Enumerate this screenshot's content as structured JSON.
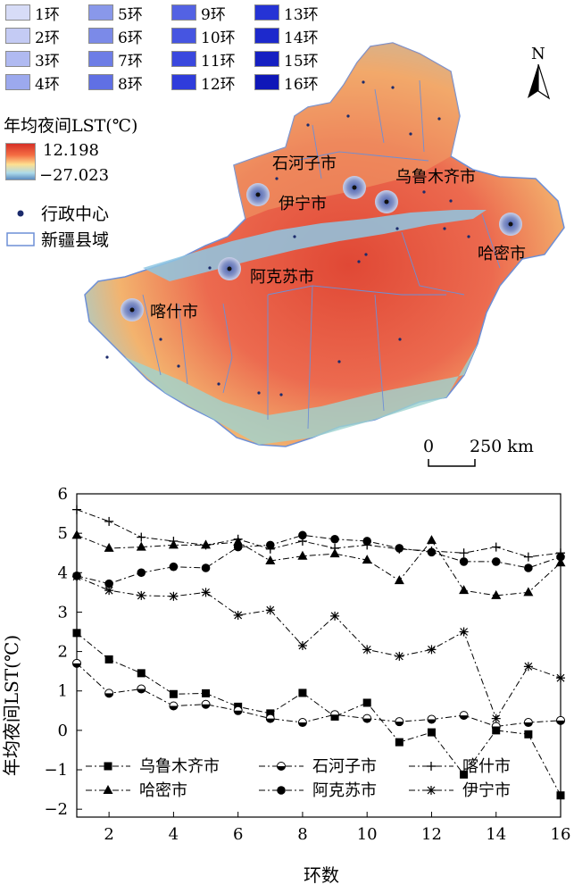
{
  "map": {
    "ring_legend": [
      "1环",
      "2环",
      "3环",
      "4环",
      "5环",
      "6环",
      "7环",
      "8环",
      "9环",
      "10环",
      "11环",
      "12环",
      "13环",
      "14环",
      "15环",
      "16环"
    ],
    "ring_colors": [
      "#d7dcf7",
      "#c4cbf4",
      "#b0baf1",
      "#9ca9ee",
      "#8998ea",
      "#7b8ae8",
      "#6d7de6",
      "#6070e4",
      "#5362e3",
      "#4655e1",
      "#3a48de",
      "#2f3cdb",
      "#2533d5",
      "#1d29cc",
      "#1620c2",
      "#0f17b8"
    ],
    "lst_title": "年均夜间LST(℃)",
    "lst_max": "12.198",
    "lst_min": "−27.023",
    "admin_center_label": "行政中心",
    "county_label": "新疆县域",
    "north_label": "N",
    "scale_zero": "0",
    "scale_label": "250 km",
    "cities": [
      "石河子市",
      "乌鲁木齐市",
      "伊宁市",
      "哈密市",
      "阿克苏市",
      "喀什市"
    ]
  },
  "chart_data": {
    "type": "line",
    "xlabel": "环数",
    "ylabel": "年均夜间LST(℃)",
    "xlim": [
      1,
      16
    ],
    "ylim": [
      -2.2,
      6
    ],
    "x_ticks": [
      2,
      4,
      6,
      8,
      10,
      12,
      14,
      16
    ],
    "y_ticks": [
      -2,
      -1,
      0,
      1,
      2,
      3,
      4,
      5,
      6
    ],
    "x": [
      1,
      2,
      3,
      4,
      5,
      6,
      7,
      8,
      9,
      10,
      11,
      12,
      13,
      14,
      15,
      16
    ],
    "series": [
      {
        "name": "乌鲁木齐市",
        "marker": "square",
        "values": [
          2.47,
          1.8,
          1.45,
          0.92,
          0.94,
          0.6,
          0.43,
          0.95,
          0.35,
          0.7,
          -0.3,
          -0.05,
          -1.12,
          0.0,
          -0.1,
          -1.65
        ]
      },
      {
        "name": "石河子市",
        "marker": "circle-half",
        "values": [
          1.7,
          0.94,
          1.05,
          0.62,
          0.66,
          0.5,
          0.3,
          0.2,
          0.4,
          0.3,
          0.22,
          0.28,
          0.38,
          0.1,
          0.2,
          0.25
        ]
      },
      {
        "name": "喀什市",
        "marker": "plus",
        "values": [
          5.6,
          5.3,
          4.9,
          4.8,
          4.7,
          4.85,
          4.6,
          4.8,
          4.62,
          4.7,
          4.6,
          4.55,
          4.5,
          4.65,
          4.4,
          4.5
        ]
      },
      {
        "name": "哈密市",
        "marker": "triangle",
        "values": [
          4.95,
          4.62,
          4.65,
          4.7,
          4.7,
          4.78,
          4.3,
          4.42,
          4.48,
          4.32,
          3.8,
          4.82,
          3.55,
          3.42,
          3.5,
          4.25
        ]
      },
      {
        "name": "阿克苏市",
        "marker": "circle",
        "values": [
          3.92,
          3.72,
          4.0,
          4.15,
          4.12,
          4.65,
          4.7,
          4.95,
          4.85,
          4.8,
          4.62,
          4.52,
          4.28,
          4.28,
          4.12,
          4.4
        ]
      },
      {
        "name": "伊宁市",
        "marker": "asterisk",
        "values": [
          3.9,
          3.55,
          3.42,
          3.4,
          3.5,
          2.92,
          3.05,
          2.15,
          2.9,
          2.05,
          1.88,
          2.05,
          2.5,
          0.3,
          1.62,
          1.33
        ]
      }
    ]
  }
}
